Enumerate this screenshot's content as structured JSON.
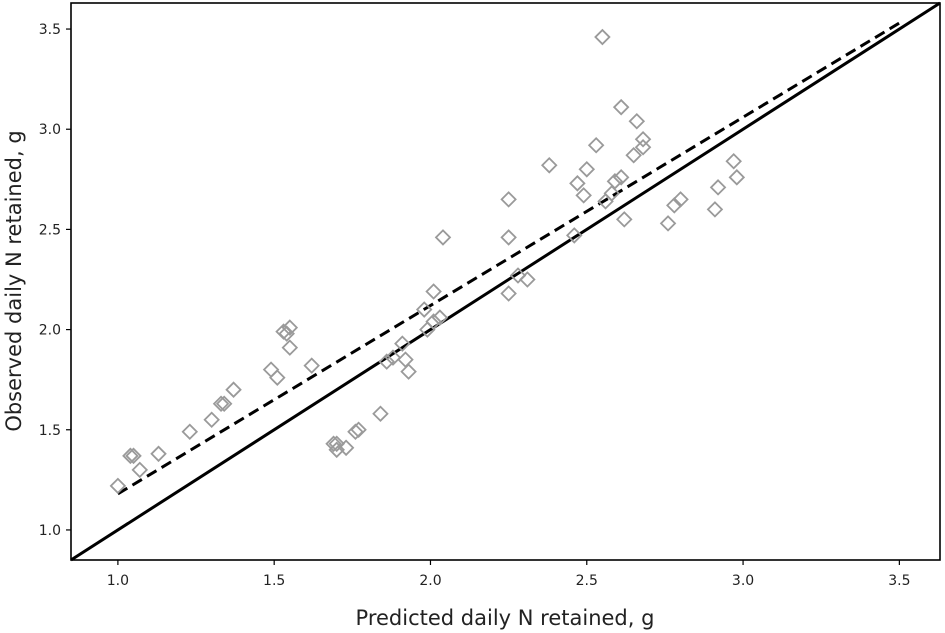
{
  "chart_data": {
    "type": "scatter",
    "title": "",
    "xlabel": "Predicted daily N retained, g",
    "ylabel": "Observed daily N retained, g",
    "xlim": [
      0.85,
      3.63
    ],
    "ylim": [
      0.85,
      3.63
    ],
    "x_ticks": [
      "1.0",
      "1.5",
      "2.0",
      "2.5",
      "3.0",
      "3.5"
    ],
    "y_ticks": [
      "1.0",
      "1.5",
      "2.0",
      "2.5",
      "3.0",
      "3.5"
    ],
    "grid": false,
    "legend": "none",
    "marker": "open-diamond",
    "marker_color": "#9a9a9a",
    "points": [
      [
        1.0,
        1.22
      ],
      [
        1.04,
        1.37
      ],
      [
        1.05,
        1.37
      ],
      [
        1.07,
        1.3
      ],
      [
        1.13,
        1.38
      ],
      [
        1.23,
        1.49
      ],
      [
        1.3,
        1.55
      ],
      [
        1.33,
        1.63
      ],
      [
        1.34,
        1.63
      ],
      [
        1.37,
        1.7
      ],
      [
        1.49,
        1.8
      ],
      [
        1.51,
        1.76
      ],
      [
        1.53,
        1.99
      ],
      [
        1.54,
        1.98
      ],
      [
        1.55,
        2.01
      ],
      [
        1.55,
        1.91
      ],
      [
        1.62,
        1.82
      ],
      [
        1.69,
        1.43
      ],
      [
        1.7,
        1.43
      ],
      [
        1.7,
        1.4
      ],
      [
        1.73,
        1.41
      ],
      [
        1.76,
        1.49
      ],
      [
        1.77,
        1.5
      ],
      [
        1.84,
        1.58
      ],
      [
        1.86,
        1.84
      ],
      [
        1.88,
        1.86
      ],
      [
        1.91,
        1.93
      ],
      [
        1.92,
        1.85
      ],
      [
        1.93,
        1.79
      ],
      [
        1.98,
        2.1
      ],
      [
        1.99,
        2.0
      ],
      [
        2.01,
        2.19
      ],
      [
        2.01,
        2.04
      ],
      [
        2.03,
        2.06
      ],
      [
        2.04,
        2.46
      ],
      [
        2.25,
        2.65
      ],
      [
        2.25,
        2.46
      ],
      [
        2.25,
        2.18
      ],
      [
        2.28,
        2.27
      ],
      [
        2.31,
        2.25
      ],
      [
        2.38,
        2.82
      ],
      [
        2.46,
        2.47
      ],
      [
        2.47,
        2.73
      ],
      [
        2.49,
        2.67
      ],
      [
        2.5,
        2.8
      ],
      [
        2.53,
        2.92
      ],
      [
        2.55,
        3.46
      ],
      [
        2.56,
        2.64
      ],
      [
        2.58,
        2.68
      ],
      [
        2.59,
        2.74
      ],
      [
        2.61,
        2.76
      ],
      [
        2.61,
        3.11
      ],
      [
        2.62,
        2.55
      ],
      [
        2.65,
        2.87
      ],
      [
        2.66,
        3.04
      ],
      [
        2.68,
        2.95
      ],
      [
        2.68,
        2.91
      ],
      [
        2.76,
        2.53
      ],
      [
        2.78,
        2.62
      ],
      [
        2.8,
        2.65
      ],
      [
        2.91,
        2.6
      ],
      [
        2.92,
        2.71
      ],
      [
        2.97,
        2.84
      ],
      [
        2.98,
        2.76
      ]
    ],
    "lines": [
      {
        "style": "solid",
        "x": [
          0.85,
          3.63
        ],
        "y": [
          0.85,
          3.63
        ]
      },
      {
        "style": "dashed",
        "x": [
          1.0,
          3.5
        ],
        "y": [
          1.18,
          3.53
        ]
      }
    ]
  }
}
